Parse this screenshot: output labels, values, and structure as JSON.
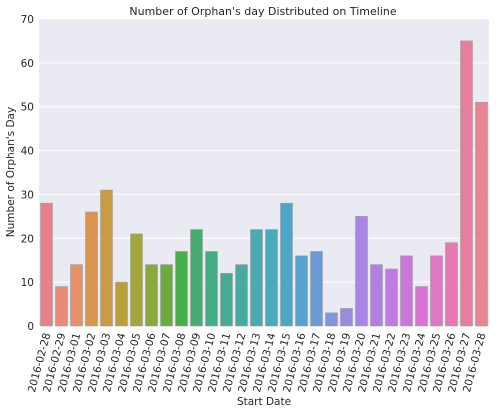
{
  "chart_data": {
    "type": "bar",
    "title": "Number of Orphan's day Distributed on Timeline",
    "xlabel": "Start Date",
    "ylabel": "Number of Orphan's Day",
    "ylim": [
      0,
      70
    ],
    "yticks": [
      0,
      10,
      20,
      30,
      40,
      50,
      60,
      70
    ],
    "grid": true,
    "categories": [
      "2016-02-28",
      "2016-02-29",
      "2016-03-01",
      "2016-03-02",
      "2016-03-03",
      "2016-03-04",
      "2016-03-05",
      "2016-03-06",
      "2016-03-07",
      "2016-03-08",
      "2016-03-09",
      "2016-03-10",
      "2016-03-11",
      "2016-03-12",
      "2016-03-13",
      "2016-03-14",
      "2016-03-15",
      "2016-03-16",
      "2016-03-17",
      "2016-03-18",
      "2016-03-19",
      "2016-03-20",
      "2016-03-21",
      "2016-03-22",
      "2016-03-23",
      "2016-03-24",
      "2016-03-25",
      "2016-03-26",
      "2016-03-27",
      "2016-03-28"
    ],
    "values": [
      28,
      9,
      14,
      26,
      31,
      10,
      21,
      14,
      14,
      17,
      22,
      17,
      12,
      14,
      22,
      22,
      28,
      16,
      17,
      3,
      4,
      25,
      14,
      13,
      16,
      9,
      16,
      19,
      65,
      51
    ],
    "colors": [
      "#e8808c",
      "#e8897a",
      "#e6906c",
      "#d99550",
      "#c99b42",
      "#b8a03b",
      "#a3a63a",
      "#8ba93b",
      "#6cac3d",
      "#4aae4d",
      "#45ad72",
      "#46ac86",
      "#47ab94",
      "#48aba2",
      "#49aab0",
      "#4ba9be",
      "#4da6c8",
      "#55a2cf",
      "#6a9bd8",
      "#8293df",
      "#9a8be2",
      "#a985e5",
      "#b27fe5",
      "#c07ae3",
      "#cc76dd",
      "#d774d1",
      "#e176c2",
      "#e679b1",
      "#e87d9e",
      "#e88496"
    ]
  }
}
